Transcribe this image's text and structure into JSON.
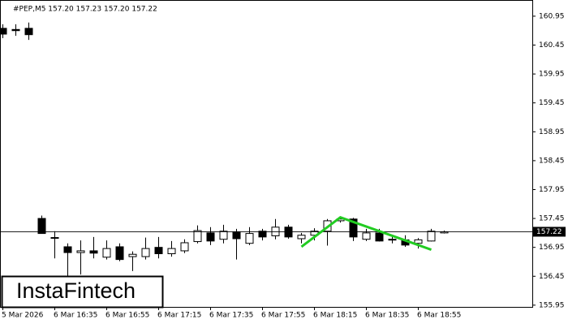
{
  "chart_data": {
    "type": "candlestick",
    "title": "#PEP,M5  157.20 157.23 157.20 157.22",
    "categories": [
      "5 Mar 2026",
      null,
      null,
      null,
      "6 Mar 16:35",
      null,
      null,
      null,
      "6 Mar 16:55",
      null,
      null,
      null,
      "6 Mar 17:15",
      null,
      null,
      null,
      "6 Mar 17:35",
      null,
      null,
      null,
      "6 Mar 17:55",
      null,
      null,
      null,
      "6 Mar 18:15",
      null,
      null,
      null,
      "6 Mar 18:35",
      null,
      null,
      null,
      "6 Mar 18:55",
      null,
      null
    ],
    "open": [
      160.74,
      160.72,
      160.74,
      157.45,
      157.12,
      156.96,
      156.86,
      156.89,
      156.78,
      156.96,
      156.79,
      156.79,
      156.95,
      156.84,
      156.89,
      157.05,
      157.2,
      157.09,
      157.22,
      157.02,
      157.23,
      157.15,
      157.3,
      157.1,
      157.16,
      157.23,
      157.41,
      157.44,
      157.09,
      157.2,
      157.09,
      157.08,
      157.02,
      157.06,
      157.2
    ],
    "high": [
      160.81,
      160.81,
      160.84,
      157.5,
      157.23,
      157.02,
      157.07,
      157.13,
      157.07,
      157.02,
      156.88,
      157.12,
      157.13,
      157.06,
      157.09,
      157.33,
      157.3,
      157.34,
      157.27,
      157.3,
      157.27,
      157.44,
      157.34,
      157.2,
      157.28,
      157.44,
      157.46,
      157.46,
      157.27,
      157.27,
      157.16,
      157.16,
      157.11,
      157.27,
      157.24
    ],
    "low": [
      160.57,
      160.61,
      160.54,
      157.19,
      156.76,
      156.46,
      156.48,
      156.76,
      156.74,
      156.71,
      156.54,
      156.74,
      156.76,
      156.79,
      156.85,
      157.02,
      156.99,
      157.02,
      156.74,
      156.99,
      157.07,
      157.09,
      157.1,
      157.02,
      157.07,
      156.98,
      157.38,
      157.06,
      157.06,
      157.05,
      157.02,
      156.96,
      156.93,
      157.05,
      157.19
    ],
    "close": [
      160.64,
      160.7,
      160.63,
      157.19,
      157.11,
      156.86,
      156.89,
      156.85,
      156.93,
      156.74,
      156.83,
      156.93,
      156.84,
      156.93,
      157.03,
      157.24,
      157.06,
      157.23,
      157.1,
      157.19,
      157.13,
      157.3,
      157.13,
      157.16,
      157.23,
      157.41,
      157.44,
      157.13,
      157.2,
      157.06,
      157.08,
      156.99,
      157.08,
      157.23,
      157.22
    ],
    "ylim": [
      155.92,
      161.23
    ],
    "yticks": [
      160.95,
      160.45,
      159.95,
      159.45,
      158.95,
      158.45,
      157.95,
      157.45,
      156.95,
      156.45,
      155.95
    ],
    "last_price": 157.22,
    "pattern": {
      "color": "#22cc22",
      "x": [
        23,
        26,
        33
      ],
      "values": [
        156.96,
        157.47,
        156.91
      ]
    }
  },
  "logo": "InstaFintech"
}
